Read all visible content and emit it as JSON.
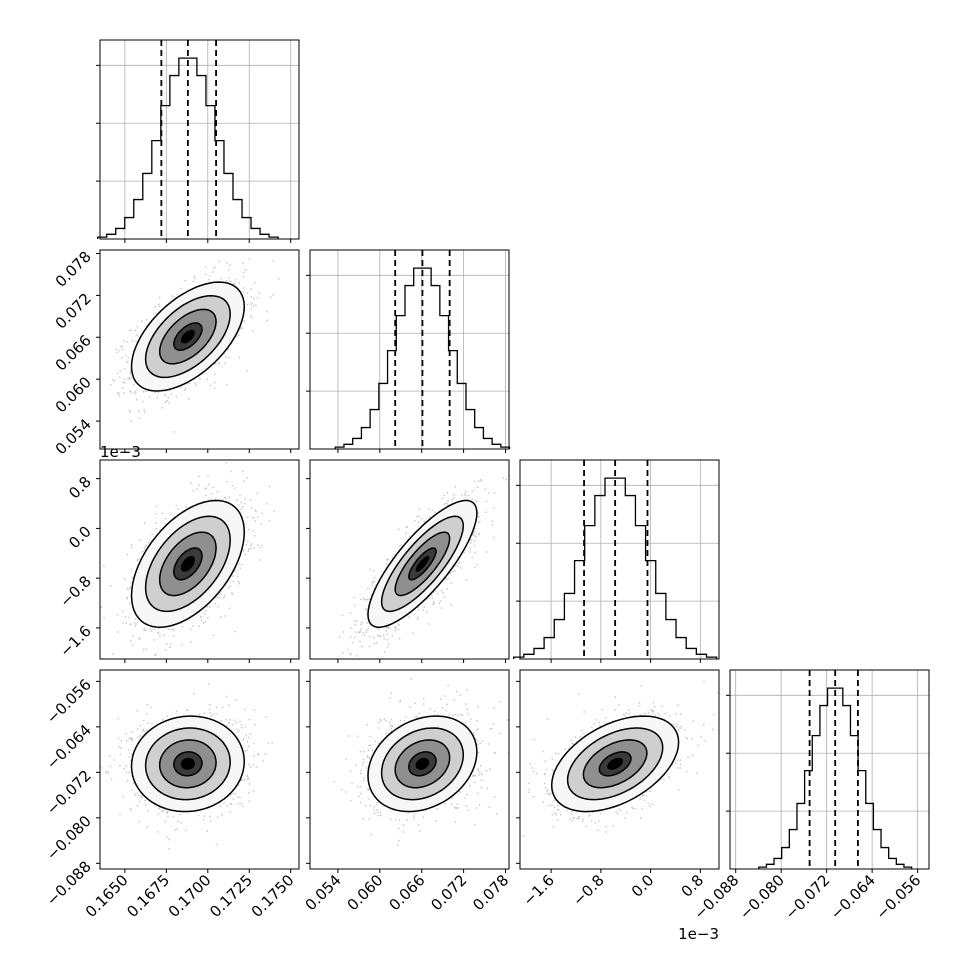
{
  "chart_data": {
    "type": "corner",
    "params": [
      {
        "range": [
          0.1635,
          0.1755
        ],
        "ticks": [
          0.165,
          0.1675,
          0.17,
          0.1725,
          0.175
        ],
        "tick_labels": [
          "0.1650",
          "0.1675",
          "0.1700",
          "0.1725",
          "0.1750"
        ],
        "quantiles": [
          0.1672,
          0.1688,
          0.1705
        ],
        "mean": 0.1688,
        "sigma": 0.0017,
        "offset": ""
      },
      {
        "range": [
          0.05,
          0.0785
        ],
        "ticks": [
          0.054,
          0.06,
          0.066,
          0.072,
          0.078
        ],
        "tick_labels": [
          "0.054",
          "0.060",
          "0.066",
          "0.072",
          "0.078"
        ],
        "quantiles": [
          0.0622,
          0.0661,
          0.07
        ],
        "mean": 0.0661,
        "sigma": 0.0039,
        "offset": ""
      },
      {
        "range": [
          -2.1,
          1.1
        ],
        "ticks": [
          -1.6,
          -0.8,
          0.0,
          0.8
        ],
        "tick_labels": [
          "−1.6",
          "−0.8",
          "0.0",
          "0.8"
        ],
        "quantiles": [
          -1.07,
          -0.57,
          -0.05
        ],
        "mean": -0.57,
        "sigma": 0.51,
        "offset": "1e−3"
      },
      {
        "range": [
          -0.089,
          -0.054
        ],
        "ticks": [
          -0.088,
          -0.08,
          -0.072,
          -0.064,
          -0.056
        ],
        "tick_labels": [
          "−0.088",
          "−0.080",
          "−0.072",
          "−0.064",
          "−0.056"
        ],
        "quantiles": [
          -0.075,
          -0.0705,
          -0.0665
        ],
        "mean": -0.0705,
        "sigma": 0.0042,
        "offset": ""
      }
    ],
    "correlations": [
      {
        "pair": [
          1,
          0
        ],
        "rho": 0.55
      },
      {
        "pair": [
          2,
          0
        ],
        "rho": 0.5
      },
      {
        "pair": [
          2,
          1
        ],
        "rho": 0.8
      },
      {
        "pair": [
          3,
          0
        ],
        "rho": 0.05
      },
      {
        "pair": [
          3,
          1
        ],
        "rho": 0.25
      },
      {
        "pair": [
          3,
          2
        ],
        "rho": 0.45
      }
    ],
    "contour_levels_sigma": [
      0.5,
      1.0,
      1.5,
      2.0
    ],
    "grid": true,
    "colors": {
      "contour": "#000000",
      "points": "#555555",
      "grid": "#b0b0b0",
      "quantile_line": "#000000"
    }
  }
}
